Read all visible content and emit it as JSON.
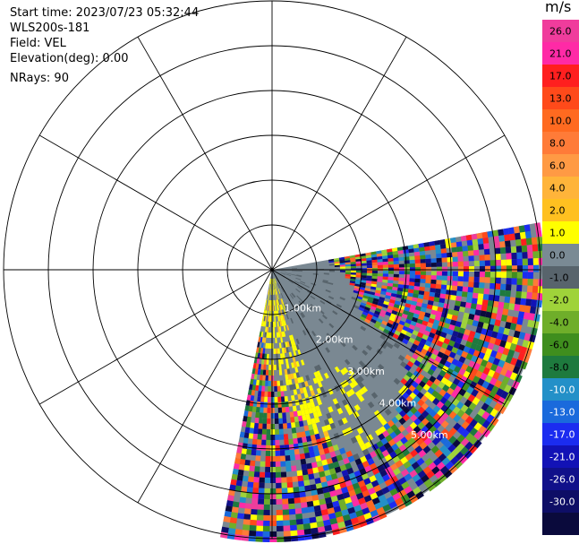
{
  "header": {
    "start_time": "Start time: 2023/07/23 05:32:44",
    "instrument": "WLS200s-181",
    "field": "Field: VEL",
    "elevation": "Elevation(deg): 0.00",
    "nrays": "NRays: 90"
  },
  "colorbar": {
    "unit": "m/s",
    "labels": [
      "26.0",
      "21.0",
      "17.0",
      "13.0",
      "10.0",
      "8.0",
      "6.0",
      "4.0",
      "2.0",
      "1.0",
      "0.0",
      "-1.0",
      "-2.0",
      "-4.0",
      "-6.0",
      "-8.0",
      "-10.0",
      "-13.0",
      "-17.0",
      "-21.0",
      "-26.0",
      "-30.0"
    ],
    "colors": [
      "#f03c9c",
      "#ff2aa6",
      "#ff1f1f",
      "#ff4a1a",
      "#ff6a20",
      "#ff7b38",
      "#ff9a44",
      "#ffb43a",
      "#ffc020",
      "#ffff00",
      "#7a8a94",
      "#58646c",
      "#9fd33a",
      "#6fae2a",
      "#3f8e1e",
      "#1e7a3e",
      "#2390c8",
      "#1a6adc",
      "#1b2cf0",
      "#1212b6",
      "#10108a",
      "#0e0e66",
      "#0a0a3c"
    ]
  },
  "chart_data": {
    "type": "polar-ppi",
    "field": "VEL",
    "units": "m/s",
    "rings_km": [
      1,
      2,
      3,
      4,
      5
    ],
    "ring_labels": [
      "1.00km",
      "2.00km",
      "3.00km",
      "4.00km",
      "5.00km"
    ],
    "scan_sector": "azimuth ~75° to ~175° (east to south), range 0–~5 km",
    "dominant_values": "near-zero (-1.0 to 1.0) gray in inner sector; noisy mixed positive/negative speckle at far ranges; yellow 2.0–4.0 patches near south edge"
  }
}
